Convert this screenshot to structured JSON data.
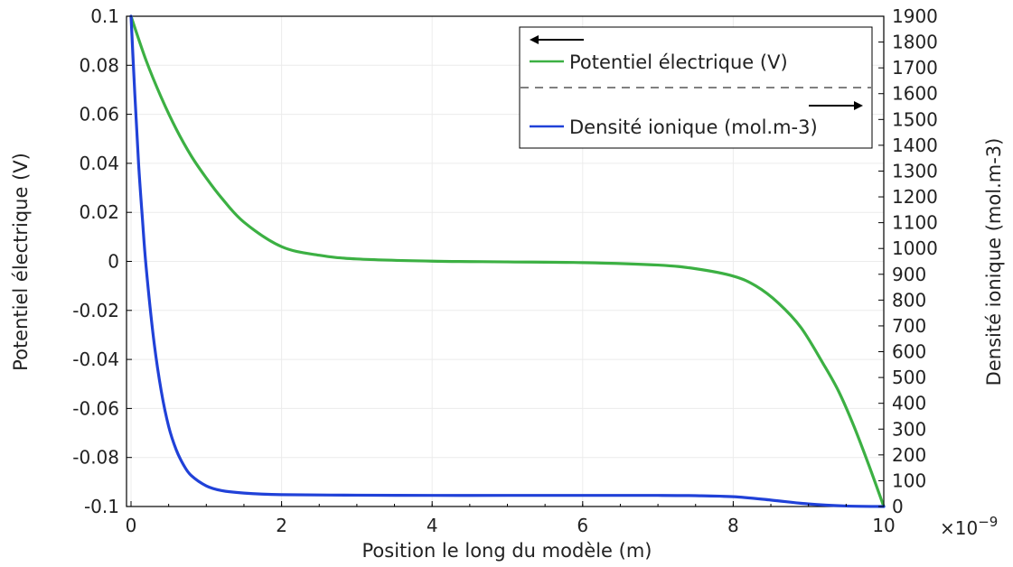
{
  "chart_data": {
    "type": "line",
    "xlabel": "Position le long du modèle (m)",
    "ylabel": "Potentiel électrique (V)",
    "y2label": "Densité ionique (mol.m-3)",
    "x_multiplier": "×10",
    "x_multiplier_exp": "−9",
    "xlim": [
      0,
      10
    ],
    "ylim": [
      -0.1,
      0.1
    ],
    "y2lim": [
      0,
      1900
    ],
    "x_ticks": [
      "0",
      "2",
      "4",
      "6",
      "8",
      "10"
    ],
    "y_ticks": [
      "0.1",
      "0.08",
      "0.06",
      "0.04",
      "0.02",
      "0",
      "-0.02",
      "-0.04",
      "-0.06",
      "-0.08",
      "-0.1"
    ],
    "y2_ticks": [
      "1900",
      "1800",
      "1700",
      "1600",
      "1500",
      "1400",
      "1300",
      "1200",
      "1100",
      "1000",
      "900",
      "800",
      "700",
      "600",
      "500",
      "400",
      "300",
      "200",
      "100",
      "0"
    ],
    "grid": true,
    "legend_position": "top-right",
    "series": [
      {
        "name": "Potentiel électrique (V)",
        "axis": "left",
        "color": "#3cb043",
        "x": [
          0,
          0.2,
          0.4,
          0.6,
          0.8,
          1.0,
          1.2,
          1.5,
          2,
          2.5,
          3,
          4,
          5,
          6,
          7,
          7.5,
          8,
          8.3,
          8.6,
          8.9,
          9.2,
          9.4,
          9.6,
          9.8,
          10
        ],
        "values": [
          0.1,
          0.082,
          0.067,
          0.054,
          0.043,
          0.034,
          0.026,
          0.016,
          0.006,
          0.0025,
          0.001,
          0.0001,
          -0.0002,
          -0.0005,
          -0.0015,
          -0.003,
          -0.006,
          -0.01,
          -0.017,
          -0.027,
          -0.042,
          -0.053,
          -0.067,
          -0.083,
          -0.1
        ]
      },
      {
        "name": "Densité ionique (mol.m-3)",
        "axis": "right",
        "color": "#2041d8",
        "x": [
          0,
          0.05,
          0.1,
          0.15,
          0.2,
          0.3,
          0.4,
          0.5,
          0.6,
          0.7,
          0.8,
          1.0,
          1.2,
          1.5,
          2,
          3,
          4,
          5,
          6,
          7,
          7.5,
          8,
          8.5,
          9,
          9.5,
          10
        ],
        "values": [
          1900,
          1600,
          1330,
          1120,
          930,
          650,
          450,
          310,
          220,
          160,
          120,
          80,
          62,
          52,
          46,
          44,
          43,
          43,
          43,
          43,
          42,
          38,
          25,
          10,
          2,
          0
        ]
      }
    ]
  }
}
